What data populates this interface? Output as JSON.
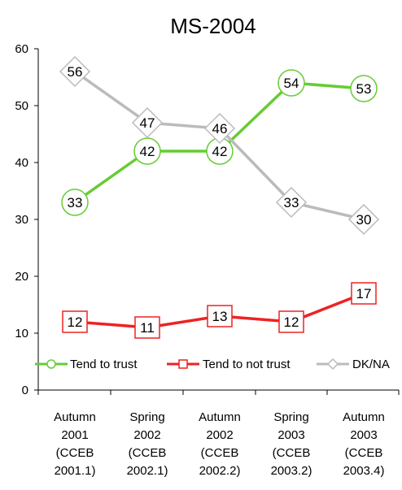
{
  "chart_data": {
    "type": "line",
    "title": "MS-2004",
    "xlabel": "",
    "ylabel": "",
    "ylim": [
      0,
      60
    ],
    "yticks": [
      0,
      10,
      20,
      30,
      40,
      50,
      60
    ],
    "grid": false,
    "legend_position": "bottom",
    "categories": [
      [
        "Autumn",
        "2001",
        "(CCEB",
        "2001.1)"
      ],
      [
        "Spring",
        "2002",
        "(CCEB",
        "2002.1)"
      ],
      [
        "Autumn",
        "2002",
        "(CCEB",
        "2002.2)"
      ],
      [
        "Spring",
        "2003",
        "(CCEB",
        "2003.2)"
      ],
      [
        "Autumn",
        "2003",
        "(CCEB",
        "2003.4)"
      ]
    ],
    "series": [
      {
        "name": "Tend to trust",
        "values": [
          33,
          42,
          42,
          54,
          53
        ],
        "color": "#66cc33",
        "marker": "circle"
      },
      {
        "name": "Tend to not trust",
        "values": [
          12,
          11,
          13,
          12,
          17
        ],
        "color": "#ee2222",
        "marker": "square"
      },
      {
        "name": "DK/NA",
        "values": [
          56,
          47,
          46,
          33,
          30
        ],
        "color": "#bbbbbb",
        "marker": "diamond"
      }
    ]
  }
}
